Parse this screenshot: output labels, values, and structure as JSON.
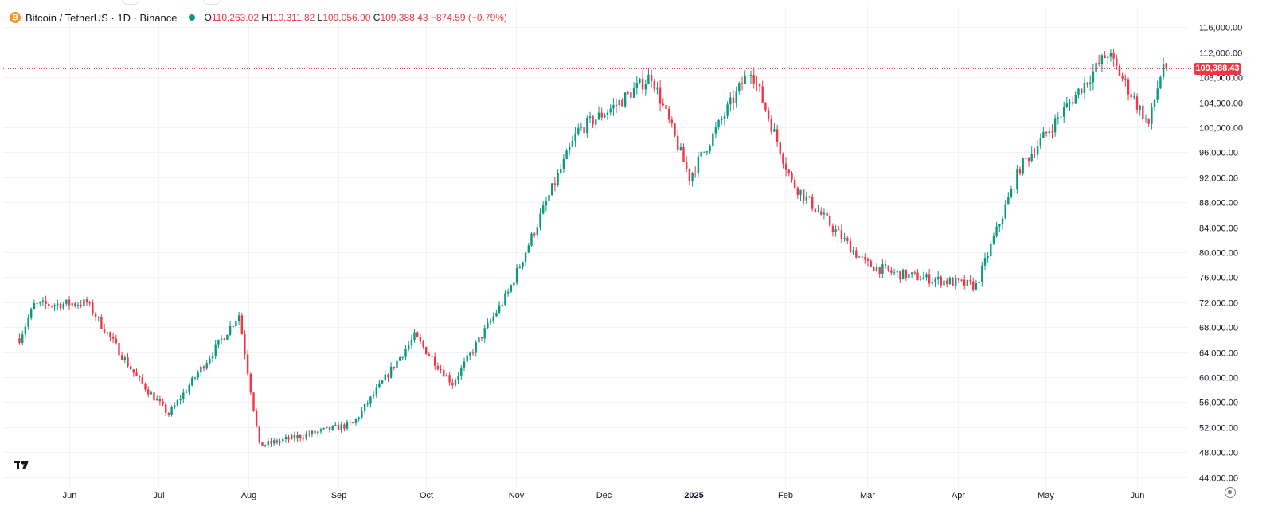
{
  "header": {
    "symbol": "Bitcoin / TetherUS · 1D · Binance",
    "icon_glyph": "₿",
    "ohlc": {
      "open_key": "O",
      "open": "110,263.02",
      "high_key": "H",
      "high": "110,311.82",
      "low_key": "L",
      "low": "109,056.90",
      "close_key": "C",
      "close": "109,388.43",
      "change": "−874.59 (−0.79%)"
    }
  },
  "price_badge": "109,388.43",
  "colors": {
    "up": "#089981",
    "down": "#f23645",
    "grid": "#f0f3fa",
    "text": "#131722"
  },
  "icons": {
    "logo": "tradingview-logo-icon",
    "settings": "settings-icon",
    "symbol": "bitcoin-icon"
  },
  "chart_data": {
    "type": "candlestick",
    "timeframe": "1D",
    "ylim": [
      42000,
      118000
    ],
    "y_ticks": [
      {
        "value": 116000,
        "label": "116,000.00"
      },
      {
        "value": 112000,
        "label": "112,000.00"
      },
      {
        "value": 108000,
        "label": "108,000.00"
      },
      {
        "value": 104000,
        "label": "104,000.00"
      },
      {
        "value": 100000,
        "label": "100,000.00"
      },
      {
        "value": 96000,
        "label": "96,000.00"
      },
      {
        "value": 92000,
        "label": "92,000.00"
      },
      {
        "value": 88000,
        "label": "88,000.00"
      },
      {
        "value": 84000,
        "label": "84,000.00"
      },
      {
        "value": 80000,
        "label": "80,000.00"
      },
      {
        "value": 76000,
        "label": "76,000.00"
      },
      {
        "value": 72000,
        "label": "72,000.00"
      },
      {
        "value": 68000,
        "label": "68,000.00"
      },
      {
        "value": 64000,
        "label": "64,000.00"
      },
      {
        "value": 60000,
        "label": "60,000.00"
      },
      {
        "value": 56000,
        "label": "56,000.00"
      },
      {
        "value": 52000,
        "label": "52,000.00"
      },
      {
        "value": 48000,
        "label": "48,000.00"
      },
      {
        "value": 44000,
        "label": "44,000.00"
      }
    ],
    "x_ticks": [
      {
        "label": "Jun",
        "bold": false
      },
      {
        "label": "Jul",
        "bold": false
      },
      {
        "label": "Aug",
        "bold": false
      },
      {
        "label": "Sep",
        "bold": false
      },
      {
        "label": "Oct",
        "bold": false
      },
      {
        "label": "Nov",
        "bold": false
      },
      {
        "label": "Dec",
        "bold": false
      },
      {
        "label": "2025",
        "bold": true
      },
      {
        "label": "Feb",
        "bold": false
      },
      {
        "label": "Mar",
        "bold": false
      },
      {
        "label": "Apr",
        "bold": false
      },
      {
        "label": "May",
        "bold": false
      },
      {
        "label": "Jun",
        "bold": false
      }
    ],
    "last_price": 109388.43,
    "monthly_closes": [
      {
        "month": "2024-05",
        "close": 67500
      },
      {
        "month": "2024-06",
        "close": 62700
      },
      {
        "month": "2024-07",
        "close": 64600
      },
      {
        "month": "2024-08",
        "close": 59000
      },
      {
        "month": "2024-09",
        "close": 63300
      },
      {
        "month": "2024-10",
        "close": 70200
      },
      {
        "month": "2024-11",
        "close": 96400
      },
      {
        "month": "2024-12",
        "close": 93400
      },
      {
        "month": "2025-01",
        "close": 102400
      },
      {
        "month": "2025-02",
        "close": 84300
      },
      {
        "month": "2025-03",
        "close": 82500
      },
      {
        "month": "2025-04",
        "close": 94200
      },
      {
        "month": "2025-05",
        "close": 104600
      },
      {
        "month": "2025-06",
        "close": 109388
      }
    ],
    "key_points": [
      {
        "date": "2024-05-15",
        "price": 66200
      },
      {
        "date": "2024-05-20",
        "price": 71500
      },
      {
        "date": "2024-06-07",
        "price": 71900
      },
      {
        "date": "2024-06-24",
        "price": 60000
      },
      {
        "date": "2024-07-05",
        "price": 54000
      },
      {
        "date": "2024-07-29",
        "price": 70000
      },
      {
        "date": "2024-08-05",
        "price": 49000
      },
      {
        "date": "2024-09-06",
        "price": 52500
      },
      {
        "date": "2024-09-27",
        "price": 66500
      },
      {
        "date": "2024-10-10",
        "price": 59000
      },
      {
        "date": "2024-10-29",
        "price": 73500
      },
      {
        "date": "2024-11-12",
        "price": 89000
      },
      {
        "date": "2024-11-22",
        "price": 99500
      },
      {
        "date": "2024-12-05",
        "price": 103600
      },
      {
        "date": "2024-12-17",
        "price": 108300
      },
      {
        "date": "2024-12-30",
        "price": 92000
      },
      {
        "date": "2025-01-20",
        "price": 109500
      },
      {
        "date": "2025-02-03",
        "price": 91200
      },
      {
        "date": "2025-02-28",
        "price": 78200
      },
      {
        "date": "2025-03-10",
        "price": 76600
      },
      {
        "date": "2025-04-07",
        "price": 74600
      },
      {
        "date": "2025-04-22",
        "price": 93500
      },
      {
        "date": "2025-05-22",
        "price": 111900
      },
      {
        "date": "2025-06-05",
        "price": 100400
      },
      {
        "date": "2025-06-10",
        "price": 110300
      },
      {
        "date": "2025-06-11",
        "price": 109388
      }
    ]
  }
}
